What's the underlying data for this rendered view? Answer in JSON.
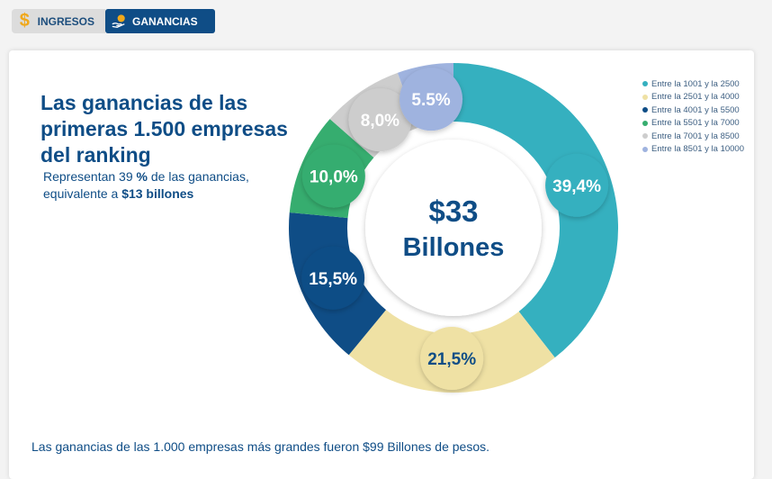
{
  "tabs": [
    {
      "label": "INGRESOS",
      "icon": "dollar-icon",
      "active": false
    },
    {
      "label": "GANANCIAS",
      "icon": "hand-coin-icon",
      "active": true
    }
  ],
  "header": {
    "title": "Las ganancias de las primeras 1.500 empresas del ranking",
    "subtitle_a": "Representan 39 ",
    "subtitle_b": "%",
    "subtitle_c": " de las ganancias, equivalente a ",
    "subtitle_d": "$13 billones"
  },
  "center": {
    "line1": "$33",
    "line2": "Billones"
  },
  "footer": "Las ganancias de las 1.000 empresas más grandes fueron $99 Billones de pesos.",
  "chart_data": {
    "type": "pie",
    "donut": true,
    "legend_position": "top-right",
    "categories": [
      "Entre la 1001 y la 2500",
      "Entre la 2501 y la 4000",
      "Entre la 4001 y la 5500",
      "Entre la 5501 y la 7000",
      "Entre la 7001 y la 8500",
      "Entre la 8501 y la 10000"
    ],
    "values": [
      39.4,
      21.5,
      15.5,
      10.0,
      8.0,
      5.5
    ],
    "labels": [
      "39,4%",
      "21,5%",
      "15,5%",
      "10,0%",
      "8,0%",
      "5.5%"
    ],
    "colors": [
      "#35b0bf",
      "#efe1a4",
      "#0f4d86",
      "#36ad6f",
      "#cdcdcd",
      "#9fb3df"
    ]
  }
}
